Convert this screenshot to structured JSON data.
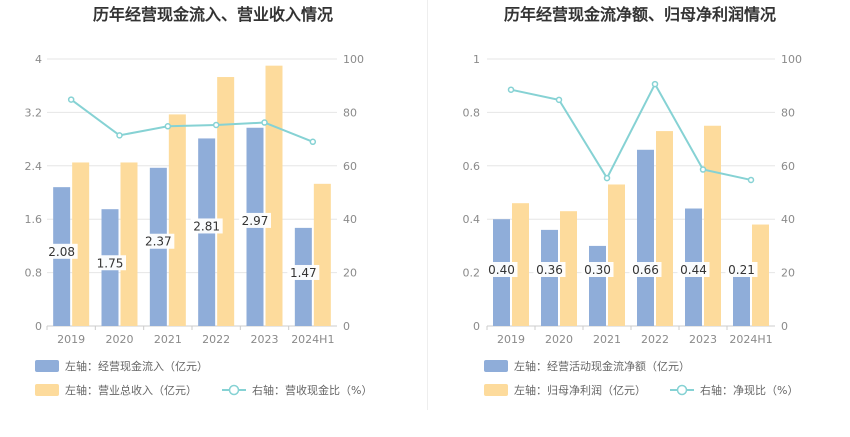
{
  "colors": {
    "bar_primary": "#8fadd9",
    "bar_secondary": "#fddb9c",
    "line": "#86d2d4",
    "grid": "#e6e6e6",
    "label_bg": "#ffffff"
  },
  "chart_data": [
    {
      "type": "bar",
      "title": "历年经营现金流入、营业收入情况",
      "categories": [
        "2019",
        "2020",
        "2021",
        "2022",
        "2023",
        "2024H1"
      ],
      "left_axis": {
        "ticks": [
          "0",
          "0.8",
          "1.6",
          "2.4",
          "3.2",
          "4"
        ],
        "ylim": [
          0,
          4
        ]
      },
      "right_axis": {
        "ticks": [
          "0",
          "20",
          "40",
          "60",
          "80",
          "100"
        ],
        "ylim": [
          0,
          100
        ]
      },
      "series": [
        {
          "name": "左轴：经营现金流入（亿元）",
          "kind": "bar",
          "axis": "left",
          "values": [
            2.08,
            1.75,
            2.37,
            2.81,
            2.97,
            1.47
          ],
          "labels": [
            "2.08",
            "1.75",
            "2.37",
            "2.81",
            "2.97",
            "1.47"
          ]
        },
        {
          "name": "左轴：营业总收入（亿元）",
          "kind": "bar",
          "axis": "left",
          "values": [
            2.45,
            2.45,
            3.17,
            3.73,
            3.9,
            2.13
          ]
        },
        {
          "name": "右轴：营收现金比（%）",
          "kind": "line",
          "axis": "right",
          "values": [
            84.8,
            71.4,
            74.8,
            75.3,
            76.2,
            69.0
          ]
        }
      ],
      "legend_position": "bottom",
      "grid": true
    },
    {
      "type": "bar",
      "title": "历年经营现金流净额、归母净利润情况",
      "categories": [
        "2019",
        "2020",
        "2021",
        "2022",
        "2023",
        "2024H1"
      ],
      "left_axis": {
        "ticks": [
          "0",
          "0.2",
          "0.4",
          "0.6",
          "0.8",
          "1"
        ],
        "ylim": [
          0,
          1
        ]
      },
      "right_axis": {
        "ticks": [
          "0",
          "20",
          "40",
          "60",
          "80",
          "100"
        ],
        "ylim": [
          0,
          100
        ]
      },
      "series": [
        {
          "name": "左轴：经营活动现金流净额（亿元）",
          "kind": "bar",
          "axis": "left",
          "values": [
            0.4,
            0.36,
            0.3,
            0.66,
            0.44,
            0.21
          ],
          "labels": [
            "0.40",
            "0.36",
            "0.30",
            "0.66",
            "0.44",
            "0.21"
          ]
        },
        {
          "name": "左轴：归母净利润（亿元）",
          "kind": "bar",
          "axis": "left",
          "values": [
            0.46,
            0.43,
            0.53,
            0.73,
            0.75,
            0.38
          ]
        },
        {
          "name": "右轴：净现比（%）",
          "kind": "line",
          "axis": "right",
          "values": [
            88.5,
            84.7,
            55.4,
            90.6,
            58.6,
            54.7
          ]
        }
      ],
      "legend_position": "bottom",
      "grid": true
    }
  ]
}
